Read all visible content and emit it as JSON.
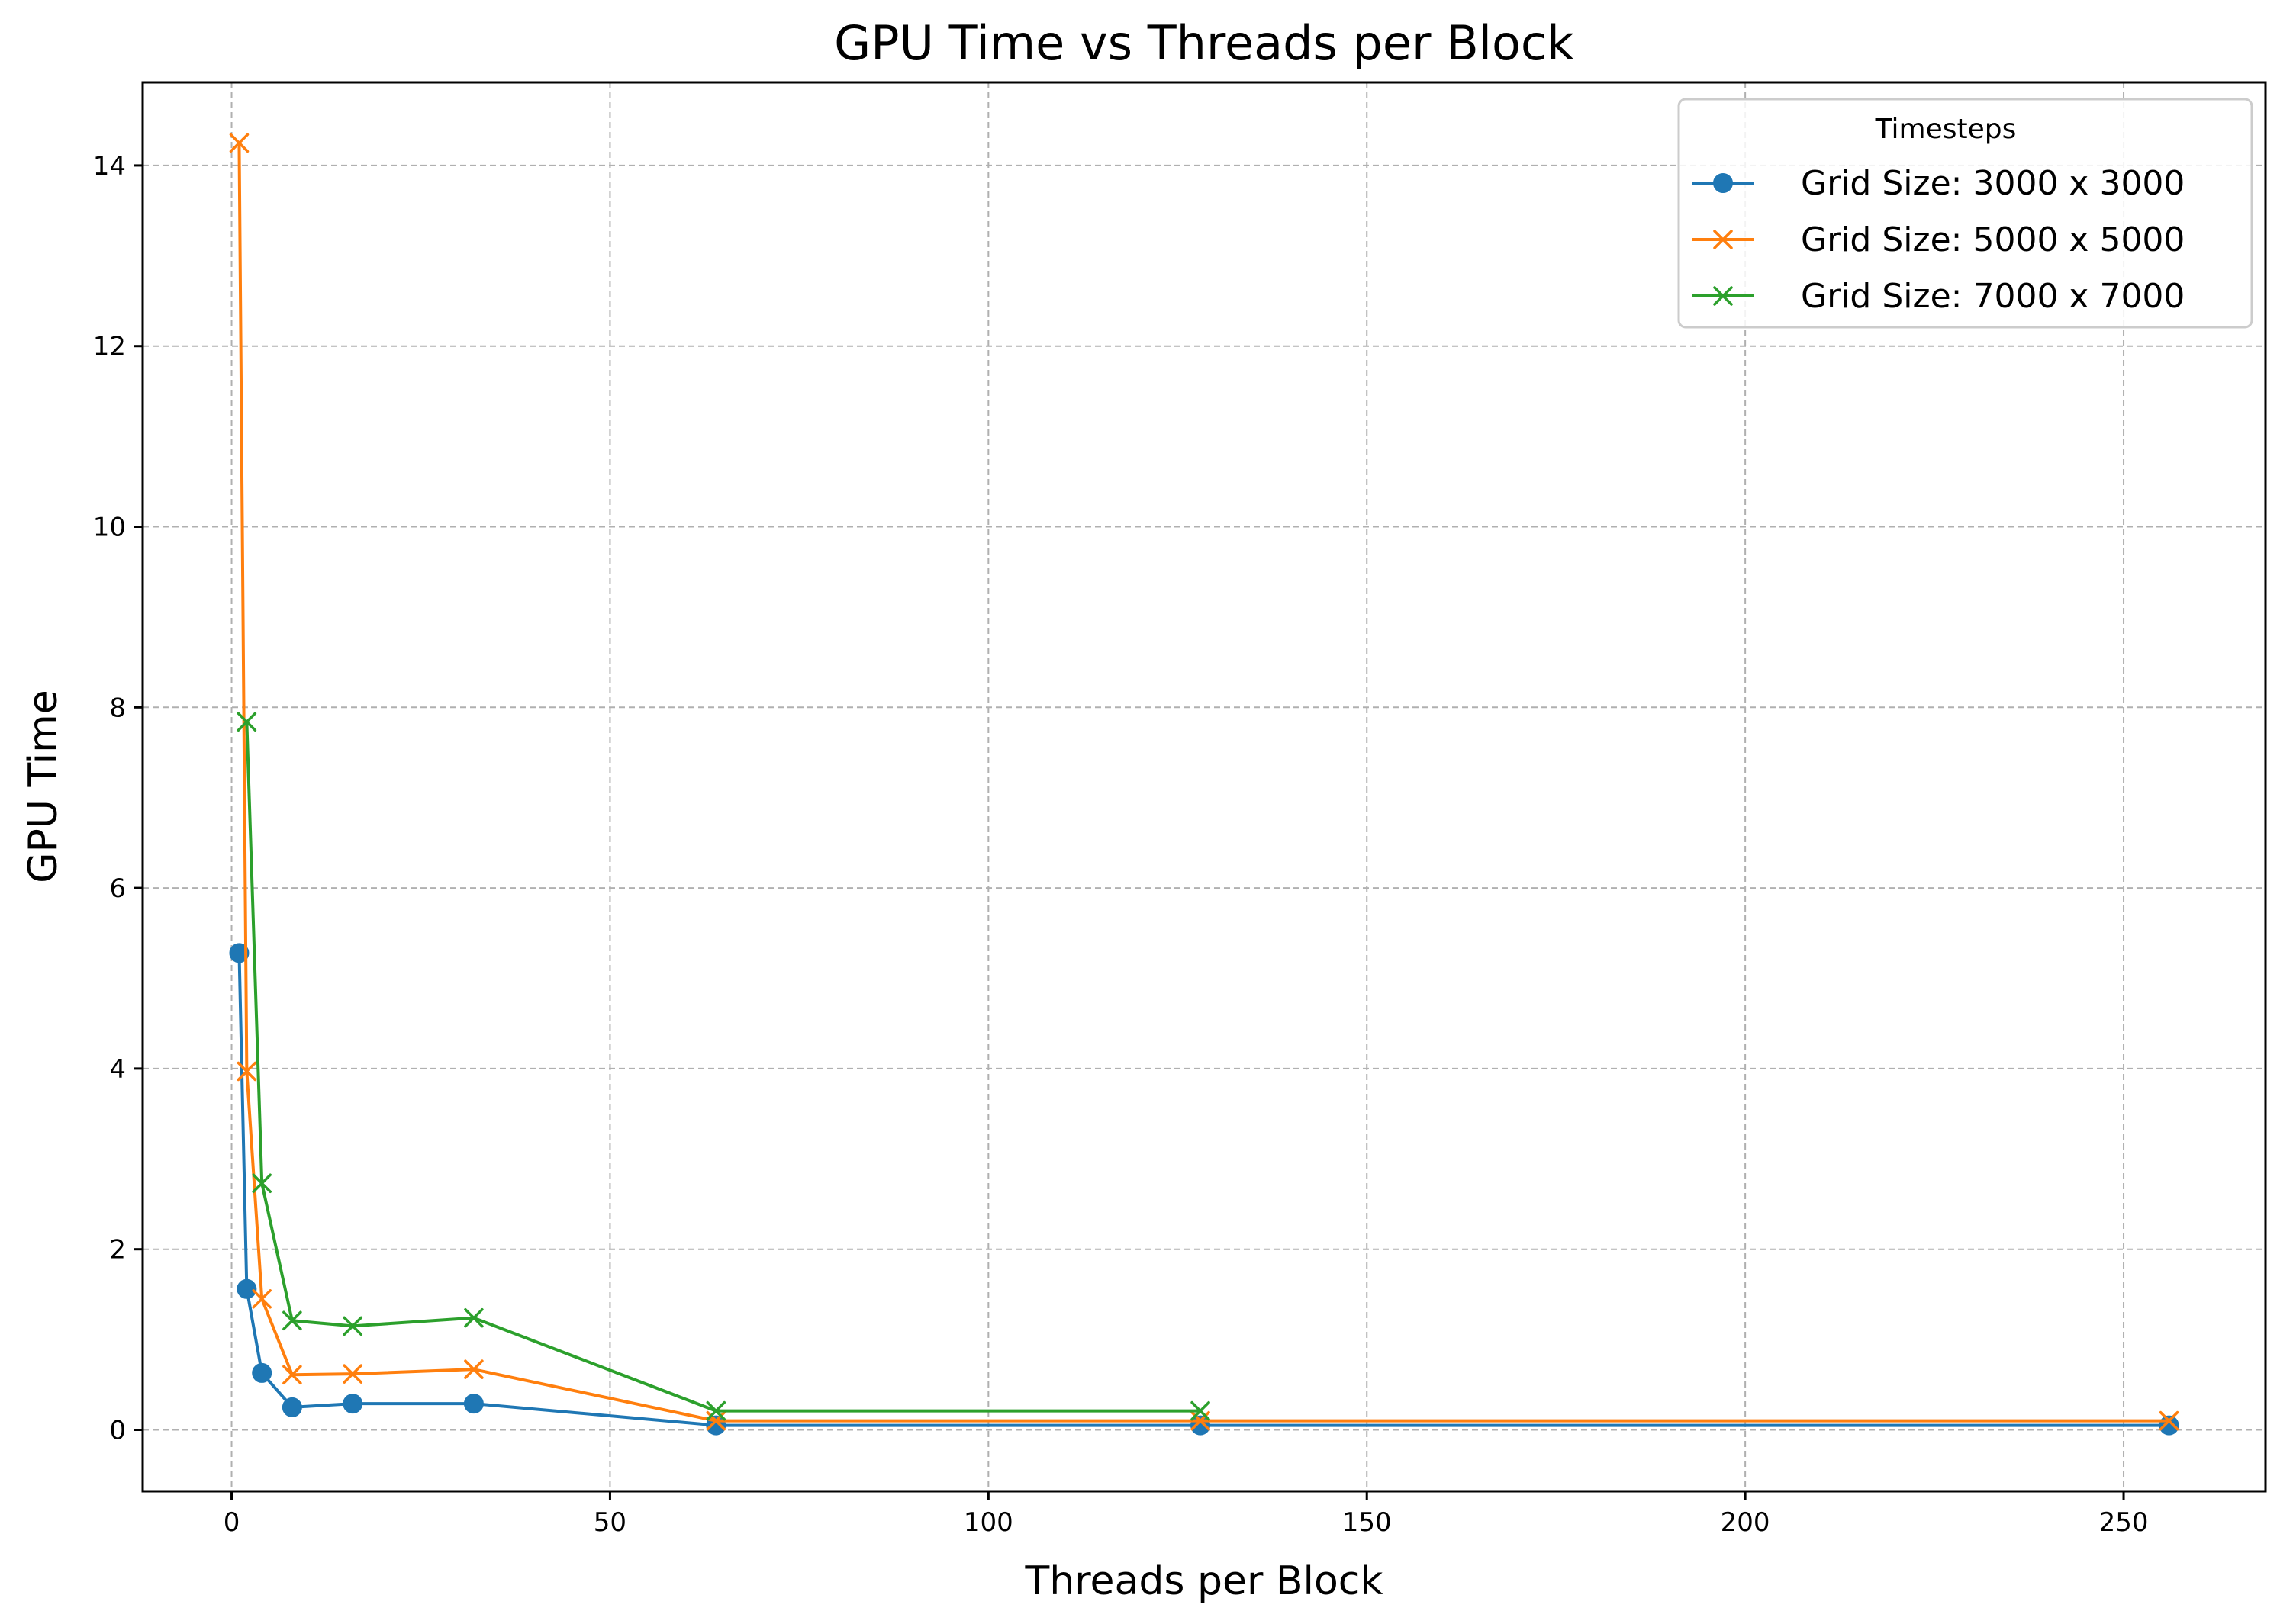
{
  "chart_data": {
    "type": "line",
    "title": "GPU Time vs Threads per Block",
    "xlabel": "Threads per Block",
    "ylabel": "GPU Time",
    "xlim": [
      -11.75,
      268.75
    ],
    "ylim": [
      -0.68,
      14.92
    ],
    "xticks": [
      0,
      50,
      100,
      150,
      200,
      250
    ],
    "yticks": [
      0,
      2,
      4,
      6,
      8,
      10,
      12,
      14
    ],
    "grid": true,
    "legend": {
      "title": "Timesteps",
      "position": "top-right"
    },
    "series": [
      {
        "name": "Grid Size: 3000 x 3000",
        "color": "#1f77b4",
        "marker": "circle",
        "x": [
          1,
          2,
          4,
          8,
          16,
          32,
          64,
          128,
          256
        ],
        "y": [
          5.28,
          1.56,
          0.63,
          0.25,
          0.29,
          0.29,
          0.05,
          0.05,
          0.05
        ]
      },
      {
        "name": "Grid Size: 5000 x 5000",
        "color": "#ff7f0e",
        "marker": "x",
        "x": [
          1,
          2,
          4,
          8,
          16,
          32,
          64,
          128,
          256
        ],
        "y": [
          14.25,
          3.97,
          1.45,
          0.61,
          0.62,
          0.67,
          0.1,
          0.1,
          0.1
        ]
      },
      {
        "name": "Grid Size: 7000 x 7000",
        "color": "#2ca02c",
        "marker": "x",
        "x": [
          2,
          4,
          8,
          16,
          32,
          64,
          128
        ],
        "y": [
          7.84,
          2.73,
          1.21,
          1.15,
          1.24,
          0.21,
          0.21
        ]
      }
    ]
  }
}
